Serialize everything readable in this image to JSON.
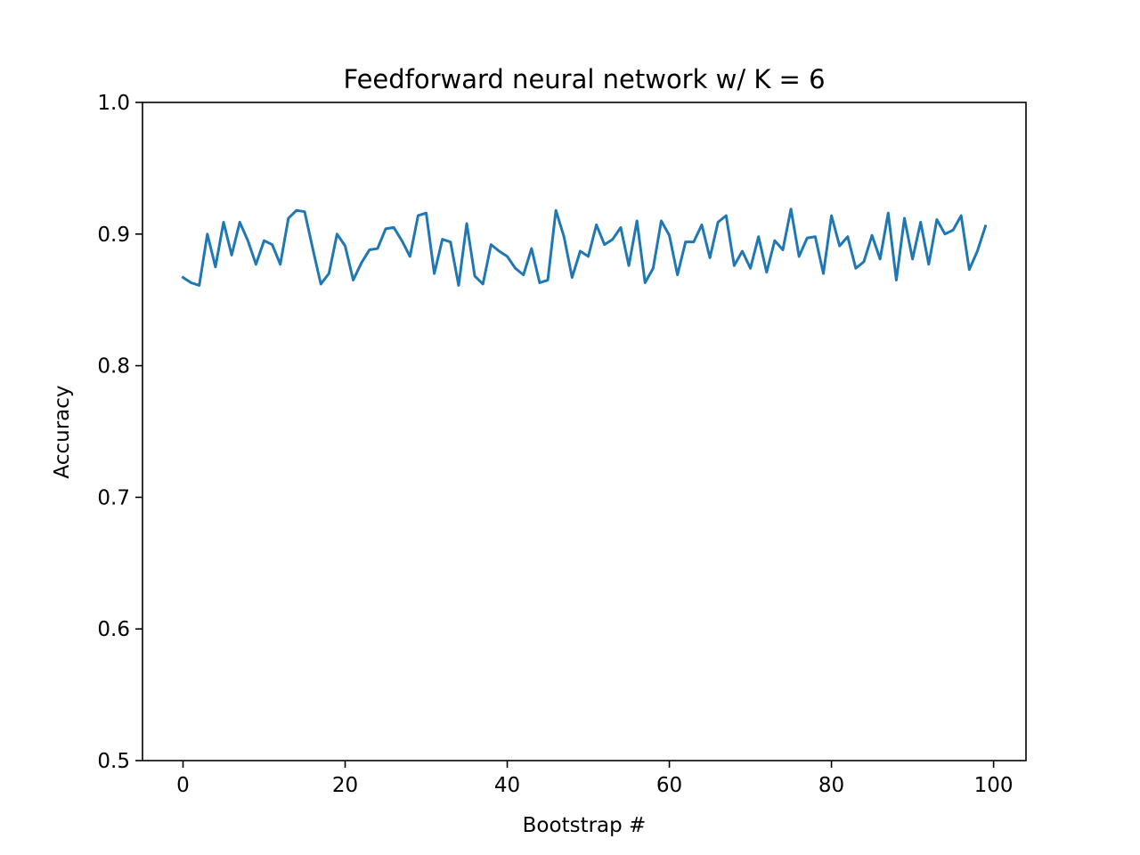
{
  "chart_data": {
    "type": "line",
    "title": "Feedforward neural network w/ K = 6",
    "xlabel": "Bootstrap #",
    "ylabel": "Accuracy",
    "xlim": [
      -5,
      104
    ],
    "ylim": [
      0.5,
      1.0
    ],
    "xticks": [
      0,
      20,
      40,
      60,
      80,
      100
    ],
    "xtick_labels": [
      "0",
      "20",
      "40",
      "60",
      "80",
      "100"
    ],
    "yticks": [
      0.5,
      0.6,
      0.7,
      0.8,
      0.9,
      1.0
    ],
    "ytick_labels": [
      "0.5",
      "0.6",
      "0.7",
      "0.8",
      "0.9",
      "1.0"
    ],
    "grid": false,
    "series": [
      {
        "color": "#1f77b4",
        "x": [
          0,
          1,
          2,
          3,
          4,
          5,
          6,
          7,
          8,
          9,
          10,
          11,
          12,
          13,
          14,
          15,
          16,
          17,
          18,
          19,
          20,
          21,
          22,
          23,
          24,
          25,
          26,
          27,
          28,
          29,
          30,
          31,
          32,
          33,
          34,
          35,
          36,
          37,
          38,
          39,
          40,
          41,
          42,
          43,
          44,
          45,
          46,
          47,
          48,
          49,
          50,
          51,
          52,
          53,
          54,
          55,
          56,
          57,
          58,
          59,
          60,
          61,
          62,
          63,
          64,
          65,
          66,
          67,
          68,
          69,
          70,
          71,
          72,
          73,
          74,
          75,
          76,
          77,
          78,
          79,
          80,
          81,
          82,
          83,
          84,
          85,
          86,
          87,
          88,
          89,
          90,
          91,
          92,
          93,
          94,
          95,
          96,
          97,
          98,
          99
        ],
        "y": [
          0.867,
          0.863,
          0.861,
          0.9,
          0.875,
          0.909,
          0.884,
          0.909,
          0.895,
          0.877,
          0.895,
          0.892,
          0.877,
          0.912,
          0.918,
          0.917,
          0.889,
          0.862,
          0.87,
          0.9,
          0.891,
          0.865,
          0.878,
          0.888,
          0.889,
          0.904,
          0.905,
          0.895,
          0.883,
          0.914,
          0.916,
          0.87,
          0.896,
          0.894,
          0.861,
          0.908,
          0.868,
          0.862,
          0.892,
          0.887,
          0.883,
          0.874,
          0.869,
          0.889,
          0.863,
          0.865,
          0.918,
          0.898,
          0.867,
          0.887,
          0.883,
          0.907,
          0.892,
          0.896,
          0.905,
          0.876,
          0.91,
          0.863,
          0.874,
          0.91,
          0.899,
          0.869,
          0.894,
          0.894,
          0.907,
          0.882,
          0.909,
          0.914,
          0.876,
          0.887,
          0.874,
          0.898,
          0.871,
          0.895,
          0.888,
          0.919,
          0.883,
          0.897,
          0.898,
          0.87,
          0.914,
          0.891,
          0.898,
          0.874,
          0.879,
          0.899,
          0.881,
          0.916,
          0.865,
          0.912,
          0.881,
          0.909,
          0.877,
          0.911,
          0.9,
          0.903,
          0.914,
          0.873,
          0.887,
          0.906
        ]
      }
    ]
  }
}
